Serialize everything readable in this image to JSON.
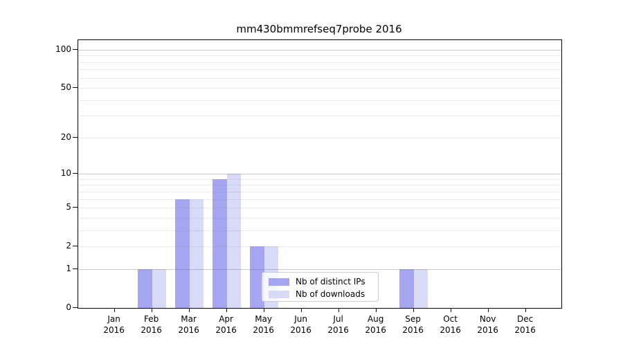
{
  "figure": {
    "title": "mm430bmmrefseq7probe 2016"
  },
  "legend": {
    "items": [
      {
        "label": "Nb of distinct IPs",
        "color": "#a4a6f1"
      },
      {
        "label": "Nb of downloads",
        "color": "#d8daf8"
      }
    ]
  },
  "chart_data": {
    "type": "bar",
    "title": "mm430bmmrefseq7probe 2016",
    "categories": [
      "Jan 2016",
      "Feb 2016",
      "Mar 2016",
      "Apr 2016",
      "May 2016",
      "Jun 2016",
      "Jul 2016",
      "Aug 2016",
      "Sep 2016",
      "Oct 2016",
      "Nov 2016",
      "Dec 2016"
    ],
    "series": [
      {
        "name": "Nb of distinct IPs",
        "color": "#a4a6f1",
        "values": [
          0,
          1,
          6,
          9,
          2,
          0,
          0,
          0,
          1,
          0,
          0,
          0
        ]
      },
      {
        "name": "Nb of downloads",
        "color": "#d8daf8",
        "values": [
          0,
          1,
          6,
          10,
          2,
          0,
          0,
          0,
          1,
          0,
          0,
          0
        ]
      }
    ],
    "xlabel": "",
    "ylabel": "",
    "yscale": "log1p",
    "yticks": [
      0,
      1,
      2,
      5,
      10,
      20,
      50,
      100
    ],
    "ylim": [
      0,
      118
    ],
    "grid": true,
    "grid_minor_values": [
      2,
      3,
      4,
      5,
      6,
      7,
      8,
      9,
      20,
      30,
      40,
      50,
      60,
      70,
      80,
      90
    ],
    "grid_major_values": [
      1,
      10,
      100
    ],
    "legend_position": "inside lower-center"
  }
}
